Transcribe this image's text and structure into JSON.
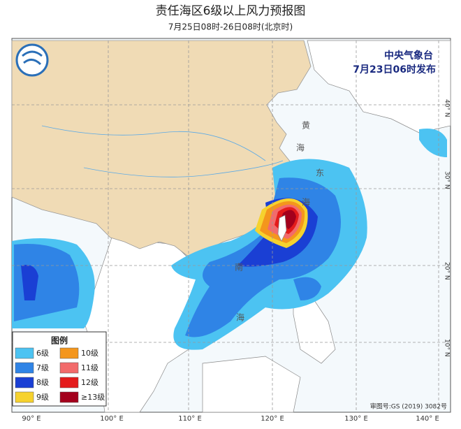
{
  "header": {
    "title": "责任海区6级以上风力预报图",
    "subtitle": "7月25日08时-26日08时(北京时)"
  },
  "issuer": {
    "name": "中央气象台",
    "time": "7月23日06时发布"
  },
  "legend": {
    "title": "图例",
    "items": [
      {
        "label": "6级",
        "color": "#4cc3f2"
      },
      {
        "label": "7级",
        "color": "#2f84e6"
      },
      {
        "label": "8级",
        "color": "#1a3fd4"
      },
      {
        "label": "9级",
        "color": "#f6d22e"
      },
      {
        "label": "10级",
        "color": "#f4961c"
      },
      {
        "label": "11级",
        "color": "#f26b6b"
      },
      {
        "label": "12级",
        "color": "#e41b1b"
      },
      {
        "label": "≥13级",
        "color": "#a3001c"
      }
    ]
  },
  "map": {
    "sea_labels": [
      "黄",
      "海",
      "东",
      "海",
      "南",
      "海"
    ],
    "lon_labels": [
      "90° E",
      "100° E",
      "110° E",
      "120° E",
      "130° E",
      "140° E"
    ],
    "lat_labels": [
      "40° N",
      "30° N",
      "20° N",
      "10° N"
    ]
  },
  "footer": {
    "approval": "审图号:GS (2019) 3082号"
  }
}
